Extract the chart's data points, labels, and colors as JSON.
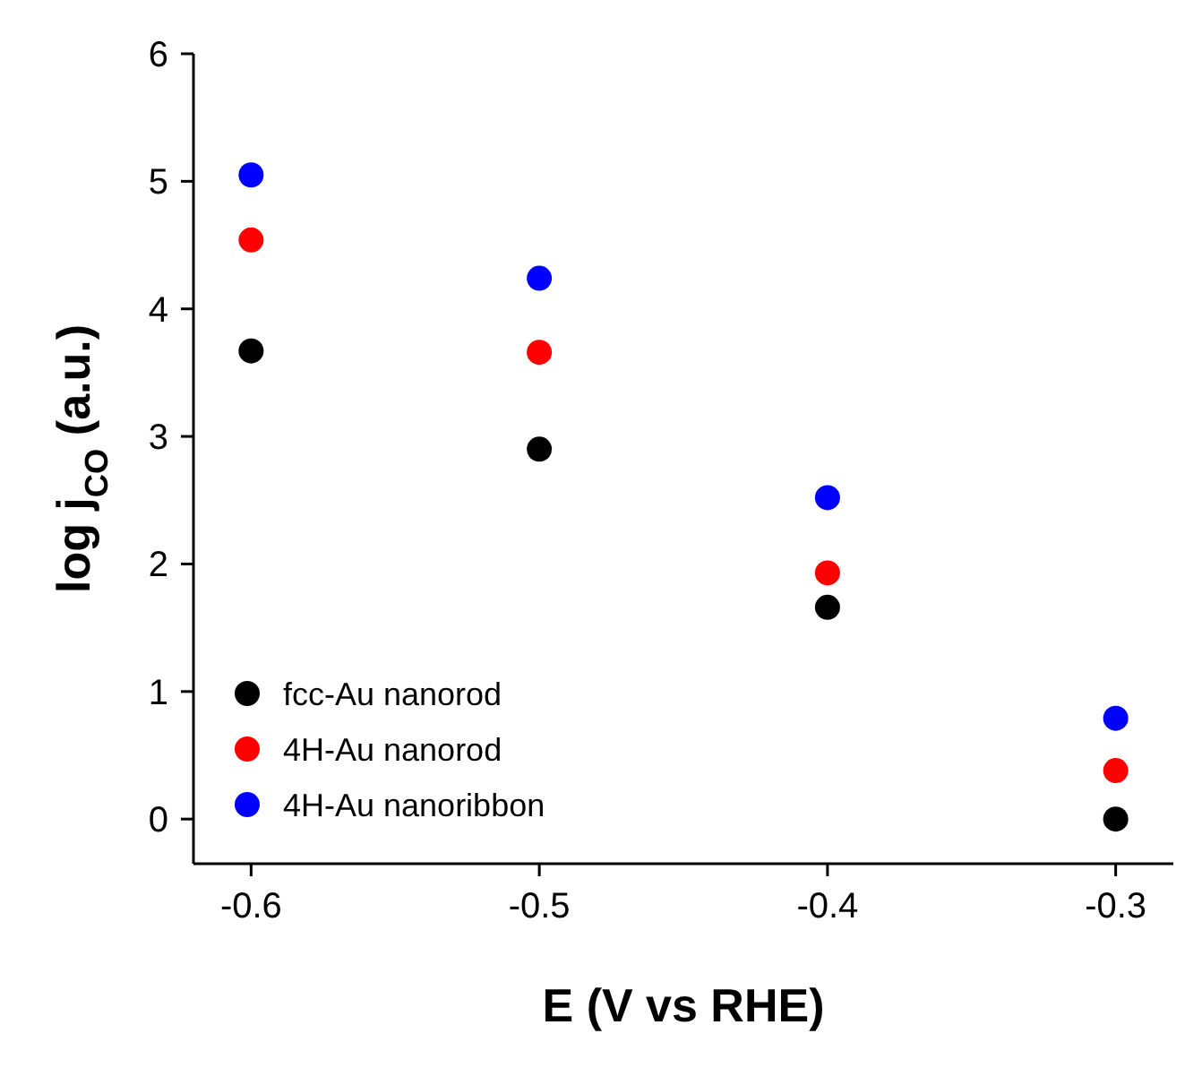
{
  "chart_data": {
    "type": "scatter",
    "xlabel": "E (V vs RHE)",
    "ylabel": "log j$_{CO}$ (a.u.)",
    "x": [
      -0.6,
      -0.5,
      -0.4,
      -0.3
    ],
    "series": [
      {
        "name": "fcc-Au nanorod",
        "color": "#000000",
        "values": [
          3.67,
          2.9,
          1.66,
          0.0
        ]
      },
      {
        "name": "4H-Au nanorod",
        "color": "#ff0000",
        "values": [
          4.54,
          3.66,
          1.93,
          0.38
        ]
      },
      {
        "name": "4H-Au nanoribbon",
        "color": "#0000ff",
        "values": [
          5.05,
          4.24,
          2.52,
          0.79
        ]
      }
    ],
    "xlim": [
      -0.62,
      -0.28
    ],
    "xticks": [
      -0.6,
      -0.5,
      -0.4,
      -0.3
    ],
    "ylim": [
      -0.35,
      6
    ],
    "yticks": [
      0,
      1,
      2,
      3,
      4,
      5,
      6
    ],
    "marker": "circle",
    "legend": "bottom left",
    "grid": false
  }
}
